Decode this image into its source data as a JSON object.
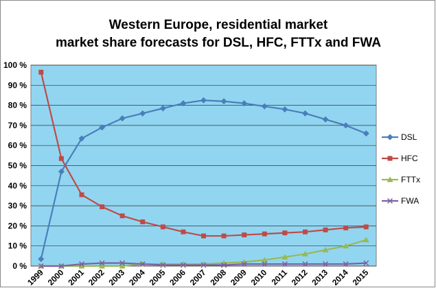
{
  "chart_data": {
    "type": "line",
    "title": [
      "Western Europe, residential market",
      "market share forecasts for DSL, HFC, FTTx and FWA"
    ],
    "categories": [
      "1999",
      "2000",
      "2001",
      "2002",
      "2003",
      "2004",
      "2005",
      "2006",
      "2007",
      "2008",
      "2009",
      "2010",
      "2011",
      "2012",
      "2013",
      "2014",
      "2015"
    ],
    "series": [
      {
        "name": "DSL",
        "color": "#4a7ebb",
        "marker": "diamond",
        "values": [
          3.5,
          47,
          63.5,
          69,
          73.5,
          76,
          78.5,
          81,
          82.5,
          82,
          81,
          79.5,
          78,
          76,
          73,
          70,
          66
        ]
      },
      {
        "name": "HFC",
        "color": "#be4b48",
        "marker": "square",
        "values": [
          96.5,
          53.5,
          35.5,
          29.5,
          25,
          22,
          19.5,
          17,
          15,
          15,
          15.5,
          16,
          16.5,
          17,
          18,
          19,
          19.5
        ]
      },
      {
        "name": "FTTx",
        "color": "#98b954",
        "marker": "triangle",
        "values": [
          0,
          0,
          0,
          0,
          0,
          1,
          1,
          1,
          1,
          1.5,
          2,
          3,
          4.5,
          6,
          8,
          10,
          13
        ]
      },
      {
        "name": "FWA",
        "color": "#7d60a0",
        "marker": "x",
        "values": [
          0,
          0,
          1,
          1.5,
          1.5,
          1,
          0.5,
          0.5,
          0.5,
          0.5,
          1,
          1,
          1,
          1,
          1,
          1,
          1.5
        ]
      }
    ],
    "ylim": [
      0,
      100
    ],
    "yticks": [
      {
        "value": 0,
        "label": "0 %"
      },
      {
        "value": 10,
        "label": "10 %"
      },
      {
        "value": 20,
        "label": "20 %"
      },
      {
        "value": 30,
        "label": "30 %"
      },
      {
        "value": 40,
        "label": "40 %"
      },
      {
        "value": 50,
        "label": "50 %"
      },
      {
        "value": 60,
        "label": "60 %"
      },
      {
        "value": 70,
        "label": "70 %"
      },
      {
        "value": 80,
        "label": "80 %"
      },
      {
        "value": 90,
        "label": "90 %"
      },
      {
        "value": 100,
        "label": "100 %"
      }
    ],
    "grid": true,
    "plot_background": "#92d5f0",
    "legend": "right"
  }
}
